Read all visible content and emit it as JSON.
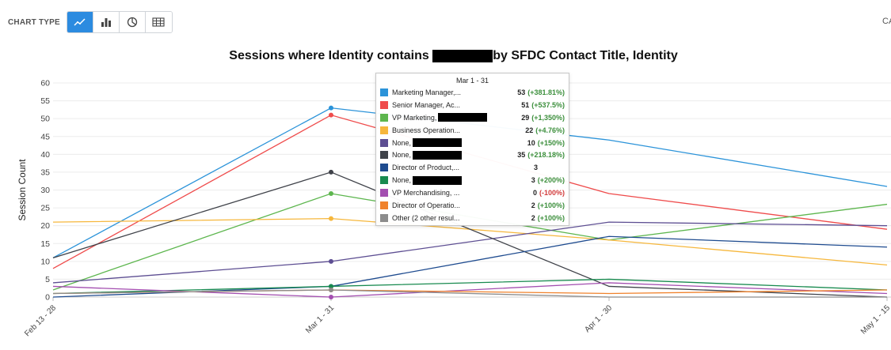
{
  "toolbar": {
    "label": "CHART TYPE",
    "buttons": [
      {
        "id": "line",
        "icon": "line-chart-icon",
        "active": true
      },
      {
        "id": "bar",
        "icon": "bar-chart-icon",
        "active": false
      },
      {
        "id": "pie",
        "icon": "pie-chart-icon",
        "active": false
      },
      {
        "id": "table",
        "icon": "table-icon",
        "active": false
      }
    ],
    "active_color": "#2c8be0",
    "right_cutoff_label": "CA"
  },
  "chart_data": {
    "type": "line",
    "title_before": "Sessions where Identity contains",
    "title_after": "by SFDC Contact Title, Identity",
    "title_redacted": true,
    "ylabel": "Session Count",
    "xlabel": "",
    "ylim": [
      0,
      60
    ],
    "yticks": [
      0,
      5,
      10,
      15,
      20,
      25,
      30,
      35,
      40,
      45,
      50,
      55,
      60
    ],
    "categories": [
      "Feb 13 - 28",
      "Mar 1 - 31",
      "Apr 1 - 30",
      "May 1 - 15"
    ],
    "grid": true,
    "legend": "none",
    "highlight_index": 1,
    "series": [
      {
        "name": "Marketing Manager,...",
        "redacted": false,
        "color": "#2b93d9",
        "values": [
          11,
          53,
          44,
          31
        ],
        "display_value": "53",
        "change": "(+381.81%)",
        "change_type": "pos"
      },
      {
        "name": "Senior Manager, Ac...",
        "redacted": false,
        "color": "#ef4b4b",
        "values": [
          8,
          51,
          29,
          19
        ],
        "display_value": "51",
        "change": "(+537.5%)",
        "change_type": "pos"
      },
      {
        "name": "VP Marketing,",
        "redacted": true,
        "color": "#5db64e",
        "values": [
          2,
          29,
          16,
          26
        ],
        "display_value": "29",
        "change": "(+1,350%)",
        "change_type": "pos"
      },
      {
        "name": "Business Operation...",
        "redacted": false,
        "color": "#f6b73c",
        "values": [
          21,
          22,
          16,
          9
        ],
        "display_value": "22",
        "change": "(+4.76%)",
        "change_type": "pos"
      },
      {
        "name": "None,",
        "redacted": true,
        "color": "#5d4e92",
        "values": [
          4,
          10,
          21,
          20
        ],
        "display_value": "10",
        "change": "(+150%)",
        "change_type": "pos"
      },
      {
        "name": "None,",
        "redacted": true,
        "color": "#3f4249",
        "values": [
          11,
          35,
          3,
          0
        ],
        "display_value": "35",
        "change": "(+218.18%)",
        "change_type": "pos"
      },
      {
        "name": "Director of Product,...",
        "redacted": false,
        "color": "#1e4b8f",
        "values": [
          0,
          3,
          17,
          14
        ],
        "display_value": "3",
        "change": "",
        "change_type": "none"
      },
      {
        "name": "None,",
        "redacted": true,
        "color": "#188a4f",
        "values": [
          1,
          3,
          5,
          2
        ],
        "display_value": "3",
        "change": "(+200%)",
        "change_type": "pos"
      },
      {
        "name": "VP Merchandising, ...",
        "redacted": false,
        "color": "#a34fb0",
        "values": [
          3,
          0,
          4,
          1
        ],
        "display_value": "0",
        "change": "(-100%)",
        "change_type": "neg"
      },
      {
        "name": "Director of Operatio...",
        "redacted": false,
        "color": "#f0822c",
        "values": [
          1,
          2,
          1,
          2
        ],
        "display_value": "2",
        "change": "(+100%)",
        "change_type": "pos"
      },
      {
        "name": "Other (2 other resul...",
        "redacted": false,
        "color": "#8c8c8c",
        "values": [
          1,
          2,
          0,
          0
        ],
        "display_value": "2",
        "change": "(+100%)",
        "change_type": "pos"
      }
    ]
  },
  "tooltip": {
    "title": "Mar 1 - 31"
  }
}
